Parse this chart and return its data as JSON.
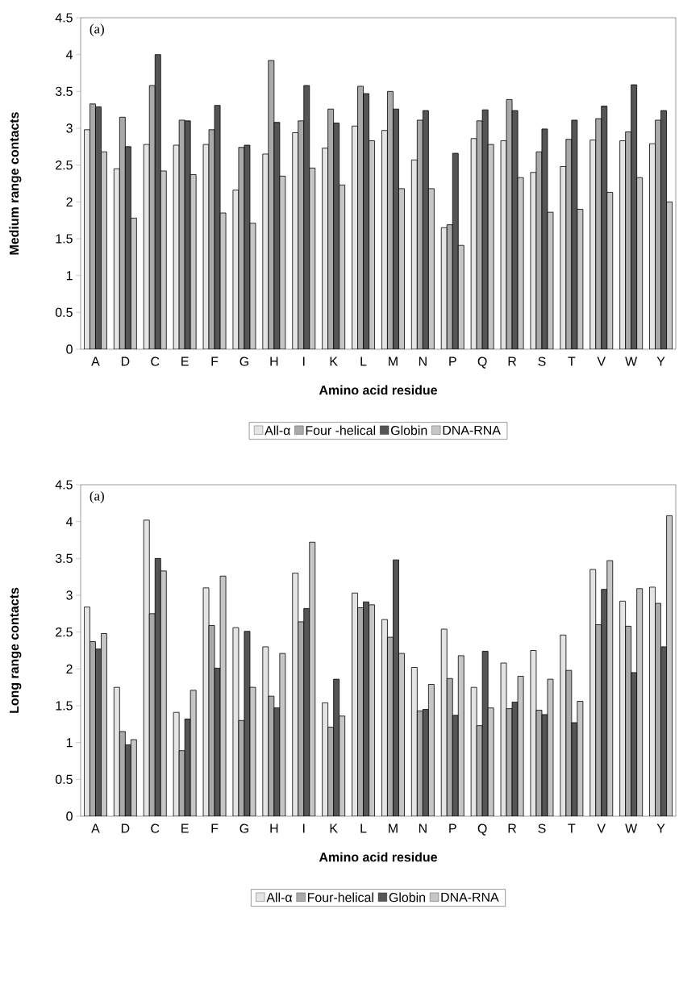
{
  "chart_data": [
    {
      "type": "bar",
      "ylabel": "Medium range contacts",
      "xlabel": "Amino acid residue",
      "annotations": [
        "(a)"
      ],
      "legend": "bottom",
      "categories": [
        "A",
        "D",
        "C",
        "E",
        "F",
        "G",
        "H",
        "I",
        "K",
        "L",
        "M",
        "N",
        "P",
        "Q",
        "R",
        "S",
        "T",
        "V",
        "W",
        "Y"
      ],
      "ylim": [
        0,
        4.5
      ],
      "yticks": [
        0,
        0.5,
        1,
        1.5,
        2,
        2.5,
        3,
        3.5,
        4,
        4.5
      ],
      "series": [
        {
          "name": "All-α",
          "color": "#e4e4e4",
          "values": [
            2.98,
            2.45,
            2.78,
            2.77,
            2.78,
            2.16,
            2.65,
            2.94,
            2.73,
            3.03,
            2.97,
            2.57,
            1.65,
            2.86,
            2.83,
            2.4,
            2.48,
            2.84,
            2.83,
            2.79
          ]
        },
        {
          "name": "Four -helical",
          "color": "#aaaaaa",
          "values": [
            3.33,
            3.15,
            3.58,
            3.11,
            2.98,
            2.74,
            3.92,
            3.1,
            3.26,
            3.57,
            3.5,
            3.11,
            1.69,
            3.1,
            3.39,
            2.68,
            2.85,
            3.13,
            2.95,
            3.11
          ]
        },
        {
          "name": "Globin",
          "color": "#555555",
          "values": [
            3.29,
            2.75,
            4.0,
            3.1,
            3.31,
            2.77,
            3.08,
            3.58,
            3.07,
            3.47,
            3.26,
            3.24,
            2.66,
            3.25,
            3.24,
            2.99,
            3.11,
            3.3,
            3.59,
            3.24
          ]
        },
        {
          "name": "DNA-RNA",
          "color": "#c6c6c6",
          "values": [
            2.68,
            1.78,
            2.42,
            2.37,
            1.85,
            1.71,
            2.35,
            2.46,
            2.23,
            2.83,
            2.18,
            2.18,
            1.41,
            2.78,
            2.33,
            1.86,
            1.9,
            2.13,
            2.33,
            2.0
          ]
        }
      ]
    },
    {
      "type": "bar",
      "ylabel": "Long range contacts",
      "xlabel": "Amino acid residue",
      "annotations": [
        "(a)"
      ],
      "legend": "bottom",
      "categories": [
        "A",
        "D",
        "C",
        "E",
        "F",
        "G",
        "H",
        "I",
        "K",
        "L",
        "M",
        "N",
        "P",
        "Q",
        "R",
        "S",
        "T",
        "V",
        "W",
        "Y"
      ],
      "ylim": [
        0,
        4.5
      ],
      "yticks": [
        0,
        0.5,
        1,
        1.5,
        2,
        2.5,
        3,
        3.5,
        4,
        4.5
      ],
      "series": [
        {
          "name": "All-α",
          "color": "#e4e4e4",
          "values": [
            2.84,
            1.75,
            4.02,
            1.41,
            3.1,
            2.56,
            2.3,
            3.3,
            1.54,
            3.03,
            2.67,
            2.02,
            2.54,
            1.75,
            2.08,
            2.25,
            2.46,
            3.35,
            2.92,
            3.11
          ]
        },
        {
          "name": "Four-helical",
          "color": "#aaaaaa",
          "values": [
            2.37,
            1.15,
            2.75,
            0.89,
            2.59,
            1.3,
            1.63,
            2.64,
            1.21,
            2.83,
            2.43,
            1.43,
            1.87,
            1.23,
            1.46,
            1.44,
            1.98,
            2.6,
            2.58,
            2.89
          ]
        },
        {
          "name": "Globin",
          "color": "#555555",
          "values": [
            2.27,
            0.97,
            3.5,
            1.32,
            2.01,
            2.51,
            1.47,
            2.82,
            1.86,
            2.91,
            3.48,
            1.45,
            1.37,
            2.24,
            1.55,
            1.38,
            1.27,
            3.08,
            1.95,
            2.3
          ]
        },
        {
          "name": "DNA-RNA",
          "color": "#c6c6c6",
          "values": [
            2.48,
            1.04,
            3.33,
            1.71,
            3.26,
            1.75,
            2.21,
            3.72,
            1.36,
            2.87,
            2.21,
            1.79,
            2.18,
            1.47,
            1.9,
            1.86,
            1.56,
            3.47,
            3.09,
            4.08
          ]
        }
      ]
    }
  ]
}
